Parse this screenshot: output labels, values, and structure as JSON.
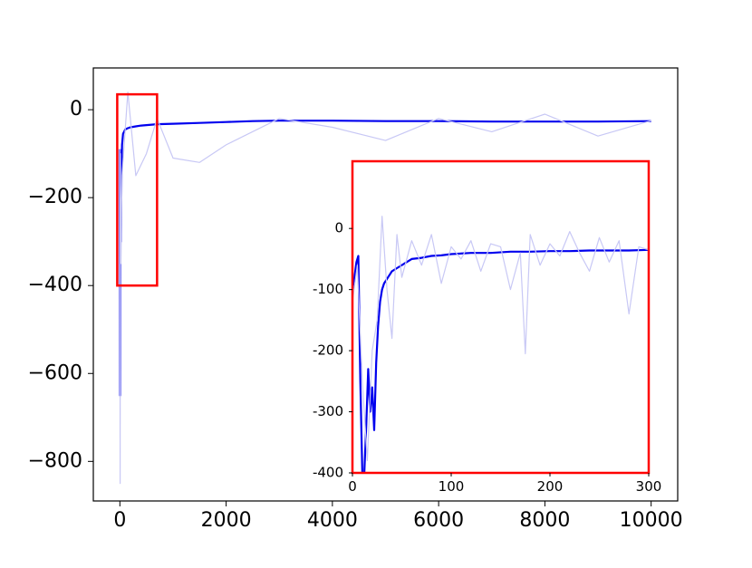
{
  "chart_data": [
    {
      "id": "main",
      "type": "line",
      "title": "",
      "xlabel": "",
      "ylabel": "",
      "xlim": [
        -500,
        10500
      ],
      "ylim": [
        -890,
        95
      ],
      "xticks": [
        0,
        2000,
        4000,
        6000,
        8000,
        10000
      ],
      "xtick_labels": [
        "0",
        "2000",
        "4000",
        "6000",
        "8000",
        "10000"
      ],
      "yticks": [
        0,
        -200,
        -400,
        -600,
        -800
      ],
      "ytick_labels": [
        "0",
        "−200",
        "−400",
        "−600",
        "−800"
      ],
      "grid": false,
      "legend": "none",
      "series": [
        {
          "role": "smoothed",
          "color": "#0000ee",
          "x": [
            0,
            5,
            10,
            20,
            30,
            40,
            60,
            80,
            100,
            150,
            200,
            300,
            400,
            500,
            700,
            1000,
            1500,
            2000,
            2500,
            3000,
            4000,
            5000,
            6000,
            7000,
            8000,
            9000,
            10000
          ],
          "y": [
            -90,
            -650,
            -120,
            -300,
            -150,
            -80,
            -55,
            -50,
            -45,
            -42,
            -40,
            -38,
            -36,
            -35,
            -33,
            -32,
            -30,
            -28,
            -26,
            -25,
            -25,
            -26,
            -26,
            -27,
            -27,
            -27,
            -26
          ]
        },
        {
          "role": "raw",
          "color": "#c8c8f5",
          "x": [
            0,
            5,
            10,
            20,
            40,
            80,
            150,
            300,
            500,
            700,
            1000,
            1500,
            2000,
            3000,
            4000,
            5000,
            6000,
            7000,
            8000,
            9000,
            10000
          ],
          "y": [
            -90,
            -850,
            -100,
            -350,
            -150,
            -80,
            40,
            -150,
            -100,
            -20,
            -110,
            -120,
            -80,
            -20,
            -40,
            -70,
            -20,
            -50,
            -10,
            -60,
            -25
          ]
        }
      ],
      "highlight_box": {
        "x": [
          -50,
          700
        ],
        "y": [
          -400,
          35
        ],
        "color": "#ff0000"
      }
    },
    {
      "id": "inset",
      "type": "line",
      "title": "",
      "xlabel": "",
      "ylabel": "",
      "xlim": [
        0,
        300
      ],
      "ylim": [
        -400,
        110
      ],
      "xticks": [
        0,
        100,
        200,
        300
      ],
      "xtick_labels": [
        "0",
        "100",
        "200",
        "300"
      ],
      "yticks": [
        0,
        -100,
        -200,
        -300,
        -400
      ],
      "ytick_labels": [
        "0",
        "-100",
        "-200",
        "-300",
        "-400"
      ],
      "grid": false,
      "legend": "none",
      "frame_color": "#ff0000",
      "series": [
        {
          "role": "smoothed",
          "color": "#0000ee",
          "x": [
            0,
            2,
            4,
            6,
            8,
            10,
            12,
            14,
            16,
            18,
            20,
            22,
            24,
            26,
            28,
            30,
            32,
            34,
            36,
            38,
            40,
            45,
            50,
            55,
            60,
            70,
            80,
            90,
            100,
            120,
            140,
            160,
            180,
            200,
            220,
            240,
            260,
            280,
            300
          ],
          "y": [
            -100,
            -80,
            -55,
            -45,
            -250,
            -400,
            -400,
            -320,
            -230,
            -300,
            -260,
            -330,
            -220,
            -160,
            -120,
            -100,
            -90,
            -85,
            -80,
            -75,
            -70,
            -65,
            -60,
            -55,
            -50,
            -48,
            -45,
            -44,
            -42,
            -40,
            -40,
            -38,
            -38,
            -37,
            -37,
            -36,
            -36,
            -36,
            -35
          ]
        },
        {
          "role": "raw",
          "color": "#c8c8f5",
          "x": [
            0,
            5,
            10,
            15,
            20,
            25,
            30,
            35,
            40,
            45,
            50,
            60,
            70,
            80,
            90,
            100,
            110,
            120,
            130,
            140,
            150,
            160,
            170,
            175,
            180,
            190,
            200,
            210,
            220,
            230,
            240,
            250,
            260,
            270,
            280,
            290,
            300
          ],
          "y": [
            -120,
            -60,
            -250,
            -380,
            -200,
            -150,
            20,
            -100,
            -180,
            -10,
            -80,
            -20,
            -60,
            -10,
            -90,
            -30,
            -50,
            -20,
            -70,
            -25,
            -30,
            -100,
            -40,
            -205,
            -10,
            -60,
            -25,
            -45,
            -5,
            -40,
            -70,
            -15,
            -55,
            -20,
            -140,
            -30,
            -35
          ]
        }
      ]
    }
  ]
}
